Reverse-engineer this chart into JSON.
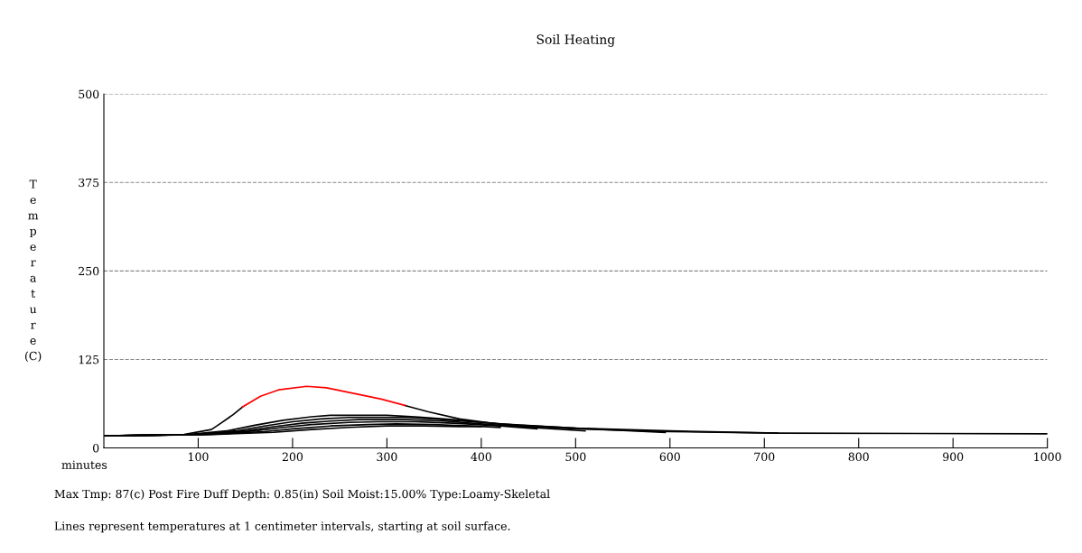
{
  "chart_data": {
    "type": "line",
    "title": "Soil Heating",
    "xlabel": "minutes",
    "ylabel": "Temperature (C)",
    "xlim": [
      0,
      1000
    ],
    "ylim": [
      0,
      500
    ],
    "xticks": [
      100,
      200,
      300,
      400,
      500,
      600,
      700,
      800,
      900,
      1000
    ],
    "yticks": [
      0,
      125,
      250,
      375,
      500
    ],
    "grid": "y",
    "legend": false,
    "marker": "none",
    "line_style": "solid",
    "annotations": [
      "Max Tmp: 87(c) Post Fire Duff Depth: 0.85(in) Soil Moist:15.00% Type:Loamy-Skeletal",
      "Lines represent temperatures at 1 centimeter intervals, starting at soil surface."
    ],
    "series": [
      {
        "color": "#000000",
        "x": [
          0,
          60,
          85,
          114,
          124,
          137,
          147,
          166,
          185,
          215,
          236,
          265,
          294,
          319,
          344,
          377,
          434,
          500,
          600,
          715,
          1000
        ],
        "values": [
          17,
          18,
          19,
          26,
          35,
          47,
          58,
          null,
          null,
          null,
          null,
          null,
          null,
          60,
          51,
          41,
          31,
          27,
          23,
          21,
          20
        ]
      },
      {
        "color": "#ff0000",
        "x": [
          147,
          166,
          185,
          215,
          236,
          265,
          294,
          319
        ],
        "values": [
          58,
          73,
          82,
          87,
          85,
          77,
          69,
          60
        ]
      },
      {
        "color": "#000000",
        "x": [
          0,
          90,
          130,
          160,
          190,
          220,
          240,
          300,
          330,
          370,
          420,
          500,
          600,
          714
        ],
        "values": [
          17,
          19,
          24,
          32,
          39,
          44,
          46,
          46,
          44,
          40,
          34,
          28,
          24,
          21
        ]
      },
      {
        "color": "#000000",
        "x": [
          0,
          95,
          140,
          170,
          200,
          230,
          260,
          320,
          350,
          390,
          440,
          500,
          595
        ],
        "values": [
          17,
          19,
          24,
          31,
          37,
          41,
          43,
          43,
          41,
          37,
          32,
          28,
          22
        ]
      },
      {
        "color": "#000000",
        "x": [
          0,
          100,
          150,
          180,
          210,
          240,
          270,
          320,
          360,
          400,
          450,
          510
        ],
        "values": [
          17,
          19,
          24,
          30,
          35,
          38,
          40,
          40,
          38,
          34,
          29,
          24
        ]
      },
      {
        "color": "#000000",
        "x": [
          0,
          105,
          160,
          190,
          220,
          260,
          290,
          330,
          370,
          420,
          459
        ],
        "values": [
          17,
          19,
          24,
          29,
          33,
          36,
          37,
          37,
          35,
          31,
          27
        ]
      },
      {
        "color": "#000000",
        "x": [
          0,
          110,
          170,
          200,
          240,
          280,
          310,
          350,
          390,
          420
        ],
        "values": [
          17,
          19,
          23,
          27,
          31,
          33,
          34,
          33,
          31,
          29
        ]
      },
      {
        "color": "#000000",
        "x": [
          0,
          115,
          180,
          220,
          260,
          300,
          340,
          380,
          400
        ],
        "values": [
          17,
          19,
          22,
          26,
          29,
          31,
          31,
          30,
          30
        ]
      }
    ]
  }
}
